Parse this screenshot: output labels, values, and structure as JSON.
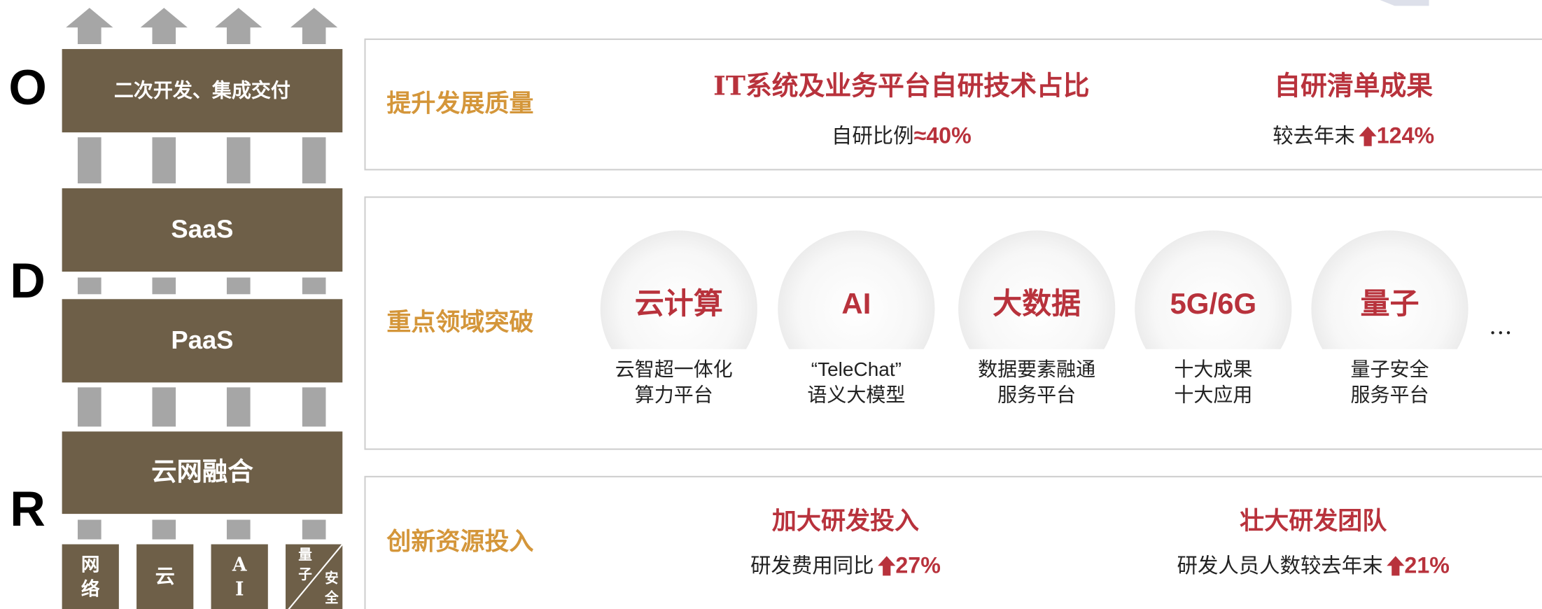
{
  "stack": {
    "letters": [
      "O",
      "D",
      "R"
    ],
    "layers": [
      "二次开发、集成交付",
      "SaaS",
      "PaaS",
      "云网融合"
    ],
    "base": [
      "网络",
      "云",
      "AI"
    ],
    "base_split": [
      "量子",
      "安全"
    ]
  },
  "panels": [
    {
      "title": "提升发展质量",
      "items": [
        {
          "heading": "IT系统及业务平台自研技术占比",
          "label": "自研比例",
          "value": "≈40%"
        },
        {
          "heading": "自研清单成果",
          "label": "较去年末",
          "value": "124%"
        }
      ]
    },
    {
      "title": "重点领域突破",
      "areas": [
        {
          "name": "云计算",
          "lines": [
            "云智超一体化",
            "算力平台"
          ]
        },
        {
          "name": "AI",
          "lines": [
            "“TeleChat”",
            "语义大模型"
          ]
        },
        {
          "name": "大数据",
          "lines": [
            "数据要素融通",
            "服务平台"
          ]
        },
        {
          "name": "5G/6G",
          "lines": [
            "十大成果",
            "十大应用"
          ]
        },
        {
          "name": "量子",
          "lines": [
            "量子安全",
            "服务平台"
          ]
        }
      ],
      "more": "…"
    },
    {
      "title": "创新资源投入",
      "items": [
        {
          "heading": "加大研发投入",
          "label": "研发费用同比",
          "value": "27%"
        },
        {
          "heading": "壮大研发团队",
          "label": "研发人员人数较去年末",
          "value": "21%"
        }
      ]
    }
  ]
}
